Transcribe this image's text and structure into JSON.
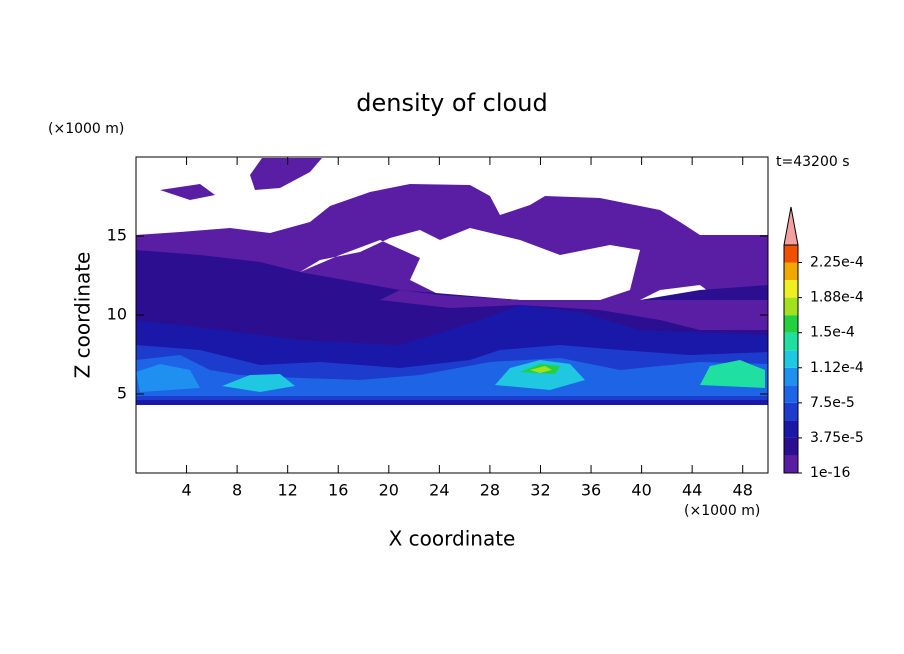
{
  "chart_data": {
    "type": "contour",
    "title": "density of cloud",
    "x_label": "X coordinate",
    "y_label": "Z coordinate",
    "x_unit": "(×1000 m)",
    "y_unit": "(×1000 m)",
    "annotation": "t=43200 s",
    "xlim": [
      0,
      50
    ],
    "xticks": [
      4,
      8,
      12,
      16,
      20,
      24,
      28,
      32,
      36,
      40,
      44,
      48
    ],
    "ylim": [
      0,
      20
    ],
    "yticks": [
      5,
      10,
      15
    ],
    "colorbar": {
      "clim": [
        1e-16,
        0.00024375
      ],
      "colors": [
        "#5a1ea5",
        "#2c0e90",
        "#1a18a8",
        "#1d3ccd",
        "#1e64e6",
        "#1f90f0",
        "#1fc8e0",
        "#1fe0a0",
        "#22d040",
        "#a2e020",
        "#f0f020",
        "#f0a800",
        "#f05000"
      ],
      "extend_color": "#f4a0a0",
      "ticks": [
        1e-16,
        {
          "value": 3.75e-05,
          "label": "3.75e-5"
        },
        {
          "value": 7.5e-05,
          "label": "7.5e-5"
        },
        {
          "value": 0.0001125,
          "label": "1.12e-4"
        },
        {
          "value": 0.00015,
          "label": "1.5e-4"
        },
        {
          "value": 0.0001875,
          "label": "1.88e-4"
        },
        {
          "value": 0.000225,
          "label": "2.25e-4"
        }
      ]
    }
  }
}
